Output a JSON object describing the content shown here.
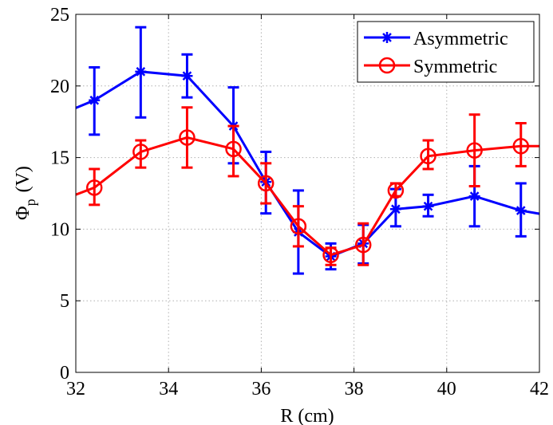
{
  "chart_data": {
    "type": "line",
    "xlabel": "R (cm)",
    "ylabel_main": "Φ",
    "ylabel_sub": "p",
    "ylabel_unit": "(V)",
    "xlim": [
      32,
      42
    ],
    "ylim": [
      0,
      25
    ],
    "xticks": [
      32,
      34,
      36,
      38,
      40,
      42
    ],
    "yticks": [
      0,
      5,
      10,
      15,
      20,
      25
    ],
    "grid": true,
    "legend_position": "top-right",
    "series": [
      {
        "name": "Asymmetric",
        "color": "#0000ff",
        "marker": "asterisk",
        "x": [
          31.5,
          32.4,
          33.4,
          34.4,
          35.4,
          36.1,
          36.8,
          37.5,
          38.2,
          38.9,
          39.6,
          40.6,
          41.6,
          42.5
        ],
        "y": [
          17.8,
          19.0,
          21.0,
          20.7,
          17.2,
          13.3,
          9.8,
          8.1,
          9.0,
          11.4,
          11.6,
          12.3,
          11.3,
          10.8
        ],
        "err_low": [
          null,
          16.6,
          17.8,
          19.2,
          14.6,
          11.1,
          6.9,
          7.2,
          7.6,
          10.2,
          10.9,
          10.2,
          9.5,
          null
        ],
        "err_high": [
          null,
          21.3,
          24.1,
          22.2,
          19.9,
          15.4,
          12.7,
          9.0,
          10.3,
          12.8,
          12.4,
          14.4,
          13.2,
          null
        ]
      },
      {
        "name": "Symmetric",
        "color": "#ff0000",
        "marker": "circle",
        "x": [
          31.5,
          32.4,
          33.4,
          34.4,
          35.4,
          36.1,
          36.8,
          37.5,
          38.2,
          38.9,
          39.6,
          40.6,
          41.6,
          42.5
        ],
        "y": [
          11.8,
          12.9,
          15.4,
          16.4,
          15.6,
          13.2,
          10.2,
          8.2,
          8.9,
          12.7,
          15.1,
          15.5,
          15.8,
          15.8
        ],
        "err_low": [
          null,
          11.7,
          14.3,
          14.3,
          13.7,
          11.8,
          8.8,
          7.5,
          7.5,
          12.3,
          14.2,
          13.0,
          14.4,
          null
        ],
        "err_high": [
          null,
          14.2,
          16.2,
          18.5,
          17.2,
          14.6,
          11.6,
          8.7,
          10.4,
          13.2,
          16.2,
          18.0,
          17.4,
          null
        ]
      }
    ]
  }
}
